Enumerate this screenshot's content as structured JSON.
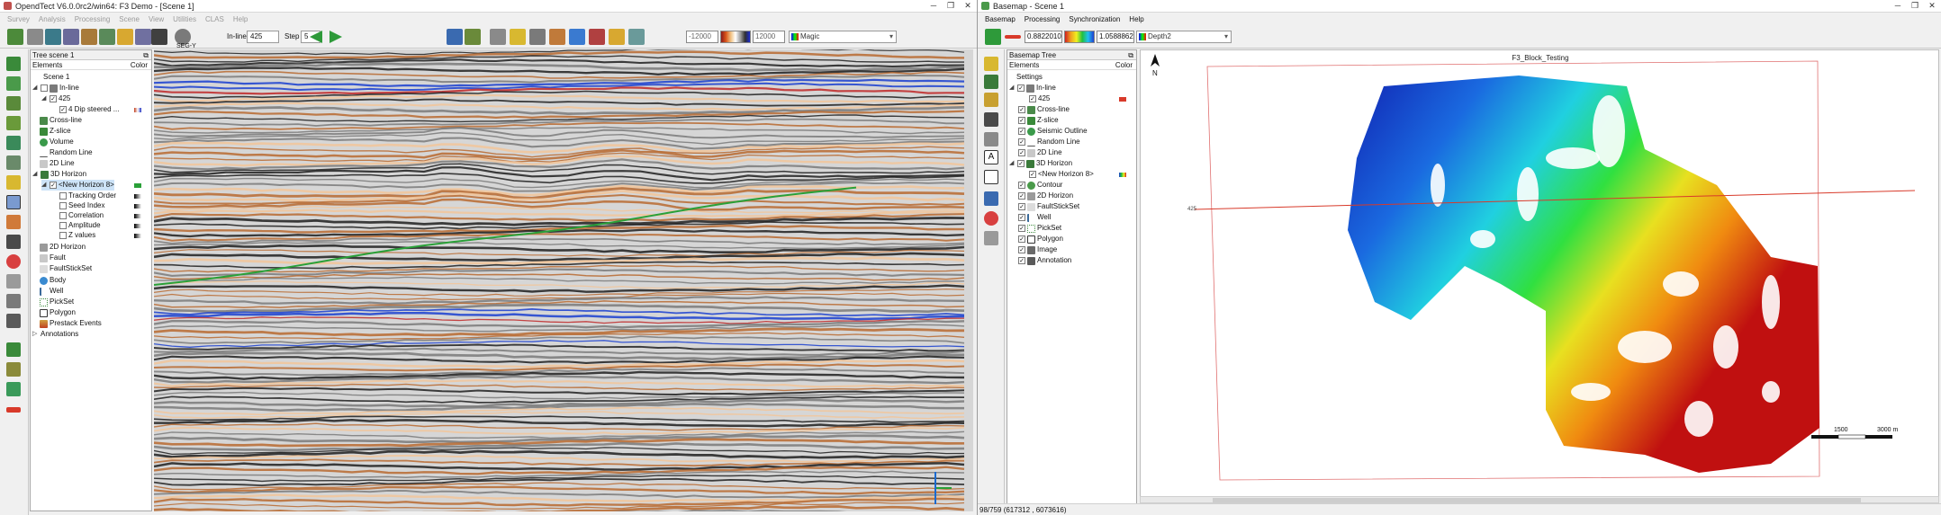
{
  "left_window": {
    "title": "OpendTect V6.0.0rc2/win64: F3 Demo - [Scene 1]",
    "menu": [
      "Survey",
      "Analysis",
      "Processing",
      "Scene",
      "View",
      "Utilities",
      "CLAS",
      "Help"
    ],
    "toolbar": {
      "segy_label": "SEG-Y",
      "inline_label": "In-line",
      "inline_value": "425",
      "step_label": "Step",
      "step_value": "5",
      "clip_min": "-12000",
      "clip_max": "12000",
      "colortable": "Magic"
    },
    "tree_panel": {
      "title": "Tree scene 1",
      "col_elements": "Elements",
      "col_color": "Color",
      "items": [
        {
          "label": "Scene 1"
        },
        {
          "label": "In-line"
        },
        {
          "label": "425"
        },
        {
          "label": "4 Dip steered ..."
        },
        {
          "label": "Cross-line"
        },
        {
          "label": "Z-slice"
        },
        {
          "label": "Volume"
        },
        {
          "label": "Random Line"
        },
        {
          "label": "2D Line"
        },
        {
          "label": "3D Horizon"
        },
        {
          "label": "<New Horizon 8>"
        },
        {
          "label": "Tracking Order"
        },
        {
          "label": "Seed Index"
        },
        {
          "label": "Correlation"
        },
        {
          "label": "Amplitude"
        },
        {
          "label": "Z values"
        },
        {
          "label": "2D Horizon"
        },
        {
          "label": "Fault"
        },
        {
          "label": "FaultStickSet"
        },
        {
          "label": "Body"
        },
        {
          "label": "Well"
        },
        {
          "label": "PickSet"
        },
        {
          "label": "Polygon"
        },
        {
          "label": "Prestack Events"
        },
        {
          "label": "Annotations"
        }
      ]
    }
  },
  "right_window": {
    "title": "Basemap - Scene 1",
    "menu": [
      "Basemap",
      "Processing",
      "Synchronization",
      "Help"
    ],
    "toolbar": {
      "range_min": "0.8822010",
      "range_max": "1.0588862",
      "colortable": "Depth2"
    },
    "tree_panel": {
      "title": "Basemap Tree",
      "col_elements": "Elements",
      "col_color": "Color",
      "items": [
        {
          "label": "Settings"
        },
        {
          "label": "In-line"
        },
        {
          "label": "425"
        },
        {
          "label": "Cross-line"
        },
        {
          "label": "Z-slice"
        },
        {
          "label": "Seismic Outline"
        },
        {
          "label": "Random Line"
        },
        {
          "label": "2D Line"
        },
        {
          "label": "3D Horizon"
        },
        {
          "label": "<New Horizon 8>"
        },
        {
          "label": "Contour"
        },
        {
          "label": "2D Horizon"
        },
        {
          "label": "FaultStickSet"
        },
        {
          "label": "Well"
        },
        {
          "label": "PickSet"
        },
        {
          "label": "Polygon"
        },
        {
          "label": "Image"
        },
        {
          "label": "Annotation"
        }
      ]
    },
    "map": {
      "title": "F3_Block_Testing",
      "north_label": "N",
      "inline_tick": "425",
      "scale_mid": "1500",
      "scale_end": "3000 m"
    },
    "status": "98/759 (617312 , 6073616)"
  },
  "colors": {
    "accent_red": "#d83a2a",
    "horizon_green": "#2aa038",
    "seismic_blue": "#1a3fd0"
  }
}
